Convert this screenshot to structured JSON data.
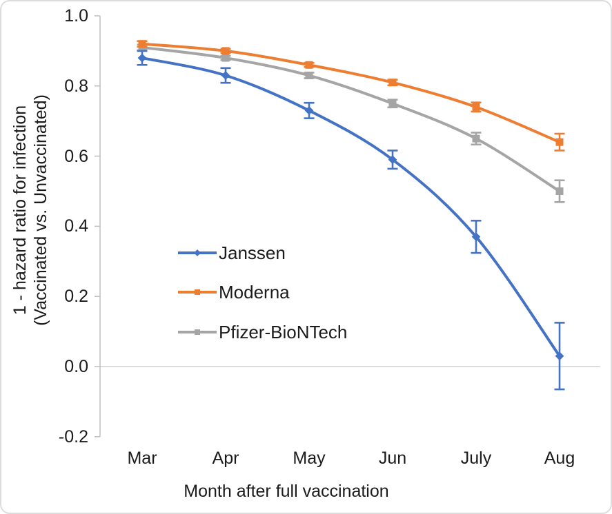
{
  "figure": {
    "background": "#ffffff",
    "border_color": "#dcdcdc"
  },
  "colors": {
    "axis": "#bfbfbf",
    "zero_gridline": "#c8c8c8",
    "text": "#1b1b1b"
  },
  "chart_data": {
    "type": "line",
    "title": "",
    "xlabel": "Month after full vaccination",
    "ylabel": "1 - hazard ratio for infection (Vaccinated vs. Unvaccinated)",
    "ylabel_lines": [
      "1 - hazard ratio for infection",
      "(Vaccinated vs. Unvaccinated)"
    ],
    "categories": [
      "Mar",
      "Apr",
      "May",
      "Jun",
      "July",
      "Aug"
    ],
    "ytick_labels": [
      "1.0",
      "0.8",
      "0.6",
      "0.4",
      "0.2",
      "0.0",
      "-0.2"
    ],
    "ytick_values": [
      1.0,
      0.8,
      0.6,
      0.4,
      0.2,
      0.0,
      -0.2
    ],
    "ylim": [
      -0.2,
      1.0
    ],
    "grid": "horizontal line at zero only",
    "legend_position": "inside-left-middle",
    "error_bars": true,
    "series": [
      {
        "name": "Janssen",
        "color": "#4472C4",
        "marker": "diamond",
        "values": [
          0.88,
          0.83,
          0.73,
          0.59,
          0.37,
          0.03
        ],
        "error": [
          0.02,
          0.021,
          0.022,
          0.026,
          0.046,
          0.095
        ]
      },
      {
        "name": "Moderna",
        "color": "#ED7D31",
        "marker": "square",
        "values": [
          0.92,
          0.9,
          0.86,
          0.81,
          0.74,
          0.64
        ],
        "error": [
          0.008,
          0.006,
          0.006,
          0.008,
          0.013,
          0.024
        ]
      },
      {
        "name": "Pfizer-BioNTech",
        "color": "#A5A5A5",
        "marker": "square",
        "values": [
          0.91,
          0.88,
          0.83,
          0.75,
          0.65,
          0.5
        ],
        "error": [
          0.008,
          0.006,
          0.008,
          0.011,
          0.017,
          0.031
        ]
      }
    ]
  }
}
